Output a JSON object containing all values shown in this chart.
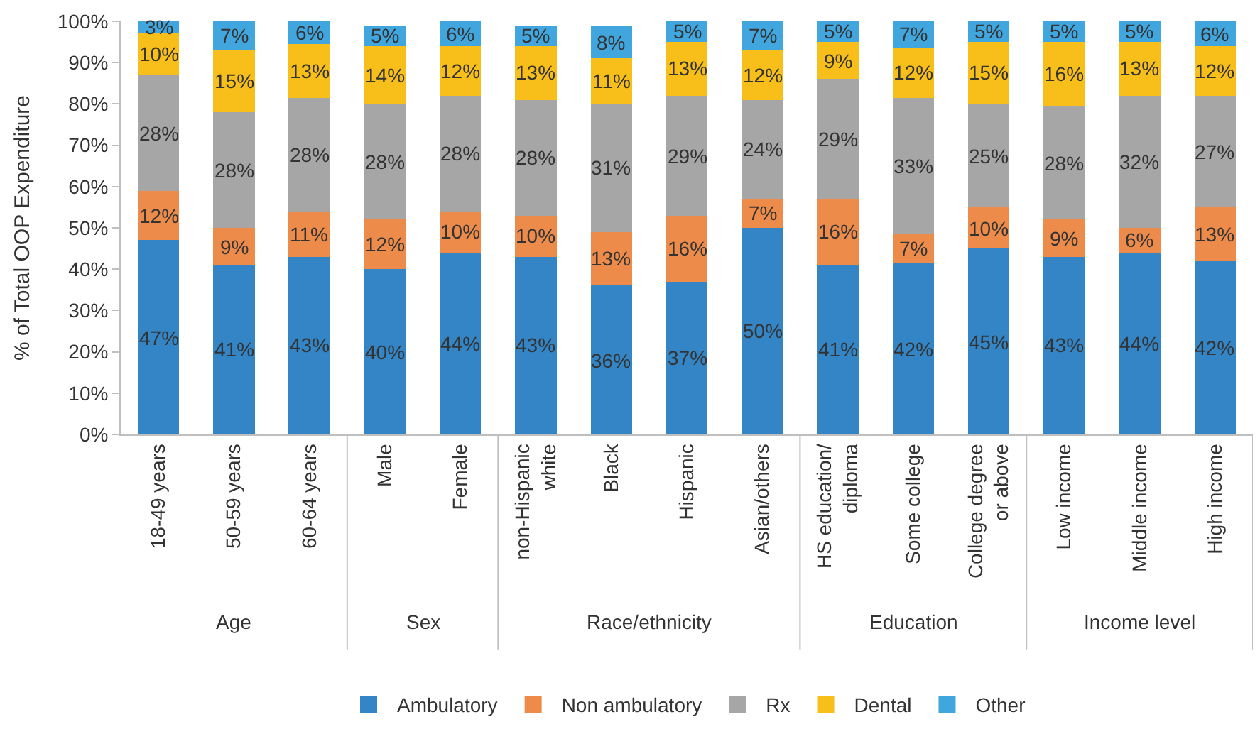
{
  "chart_data": {
    "type": "bar",
    "stacked": true,
    "ylabel": "% of Total OOP Expenditure",
    "categories": [
      "18-49 years",
      "50-59 years",
      "60-64 years",
      "Male",
      "Female",
      "non-Hispanic white",
      "Black",
      "Hispanic",
      "Asian/others",
      "HS education/diploma",
      "Some college",
      "College degree or above",
      "Low income",
      "Middle income",
      "High income"
    ],
    "series": [
      {
        "name": "Ambulatory",
        "color": "#3385c6",
        "values": [
          47,
          41,
          43,
          40,
          44,
          43,
          36,
          37,
          50,
          41,
          41.5,
          45,
          43,
          44,
          42
        ],
        "value_labels": [
          "47%",
          "41%",
          "43%",
          "40%",
          "44%",
          "43%",
          "36%",
          "37%",
          "50%",
          "41%",
          "42%",
          "45%",
          "43%",
          "44%",
          "42%"
        ]
      },
      {
        "name": "Non ambulatory",
        "color": "#ed8b4a",
        "values": [
          12,
          9,
          11,
          12,
          10,
          10,
          13,
          16,
          7,
          16,
          7,
          10,
          9,
          6,
          13
        ],
        "value_labels": [
          "12%",
          "9%",
          "11%",
          "12%",
          "10%",
          "10%",
          "13%",
          "16%",
          "7%",
          "16%",
          "7%",
          "10%",
          "9%",
          "6%",
          "13%"
        ]
      },
      {
        "name": "Rx",
        "color": "#a6a6a6",
        "values": [
          28,
          28,
          27.5,
          28,
          28,
          28,
          31,
          29,
          24,
          29,
          33,
          25,
          27.5,
          32,
          27
        ],
        "value_labels": [
          "28%",
          "28%",
          "28%",
          "28%",
          "28%",
          "28%",
          "31%",
          "29%",
          "24%",
          "29%",
          "33%",
          "25%",
          "28%",
          "32%",
          "27%"
        ]
      },
      {
        "name": "Dental",
        "color": "#f8be19",
        "values": [
          10,
          15,
          13,
          14,
          12,
          13,
          11,
          13,
          12,
          9,
          12,
          15,
          15.5,
          13,
          12
        ],
        "value_labels": [
          "10%",
          "15%",
          "13%",
          "14%",
          "12%",
          "13%",
          "11%",
          "13%",
          "12%",
          "9%",
          "12%",
          "15%",
          "16%",
          "13%",
          "12%"
        ]
      },
      {
        "name": "Other",
        "color": "#41a5de",
        "values": [
          3,
          7,
          5.5,
          5,
          6,
          5,
          8,
          5,
          7,
          5,
          6.5,
          5,
          5,
          5,
          6
        ],
        "value_labels": [
          "3%",
          "7%",
          "6%",
          "5%",
          "6%",
          "5%",
          "8%",
          "5%",
          "7%",
          "5%",
          "7%",
          "5%",
          "5%",
          "5%",
          "6%"
        ]
      }
    ],
    "annotations": [
      "Age",
      "Sex",
      "Race/ethnicity",
      "Education",
      "Income level"
    ],
    "ylim": [
      0,
      100
    ],
    "yticks": [
      {
        "value": 0,
        "label": "0%"
      },
      {
        "value": 10,
        "label": "10%"
      },
      {
        "value": 20,
        "label": "20%"
      },
      {
        "value": 30,
        "label": "30%"
      },
      {
        "value": 40,
        "label": "40%"
      },
      {
        "value": 50,
        "label": "50%"
      },
      {
        "value": 60,
        "label": "60%"
      },
      {
        "value": 70,
        "label": "70%"
      },
      {
        "value": 80,
        "label": "80%"
      },
      {
        "value": 90,
        "label": "90%"
      },
      {
        "value": 100,
        "label": "100%"
      }
    ],
    "grid": false,
    "legend": "bottom"
  }
}
